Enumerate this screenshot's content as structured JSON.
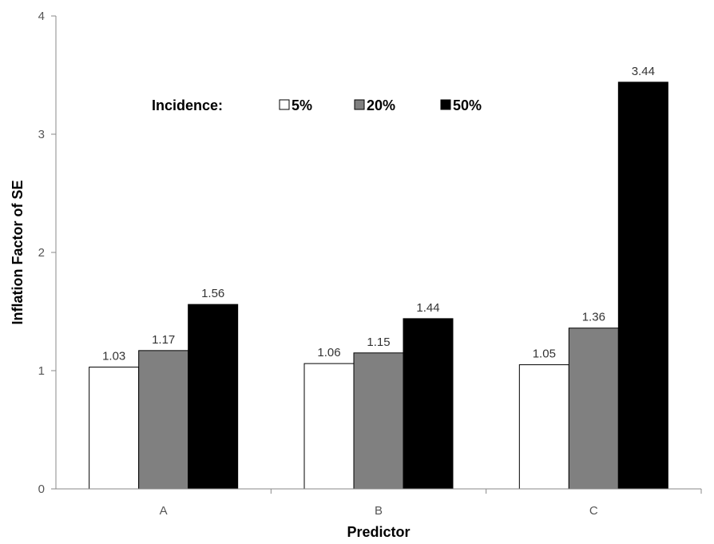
{
  "chart_data": {
    "type": "bar",
    "categories": [
      "A",
      "B",
      "C"
    ],
    "series": [
      {
        "name": "5%",
        "values": [
          1.03,
          1.06,
          1.05
        ],
        "color": "#ffffff"
      },
      {
        "name": "20%",
        "values": [
          1.17,
          1.15,
          1.36
        ],
        "color": "#808080"
      },
      {
        "name": "50%",
        "values": [
          1.56,
          1.44,
          3.44
        ],
        "color": "#000000"
      }
    ],
    "data_labels": [
      [
        "1.03",
        "1.06",
        "1.05"
      ],
      [
        "1.17",
        "1.15",
        "1.36"
      ],
      [
        "1.56",
        "1.44",
        "3.44"
      ]
    ],
    "xlabel": "Predictor",
    "ylabel": "Inflation Factor of SE",
    "ylim": [
      0,
      4
    ],
    "yticks": [
      0,
      1,
      2,
      3,
      4
    ],
    "legend_title": "Incidence:",
    "legend_position": "top-left inside plot",
    "grid": false,
    "bar_edge_color": "#000000"
  }
}
